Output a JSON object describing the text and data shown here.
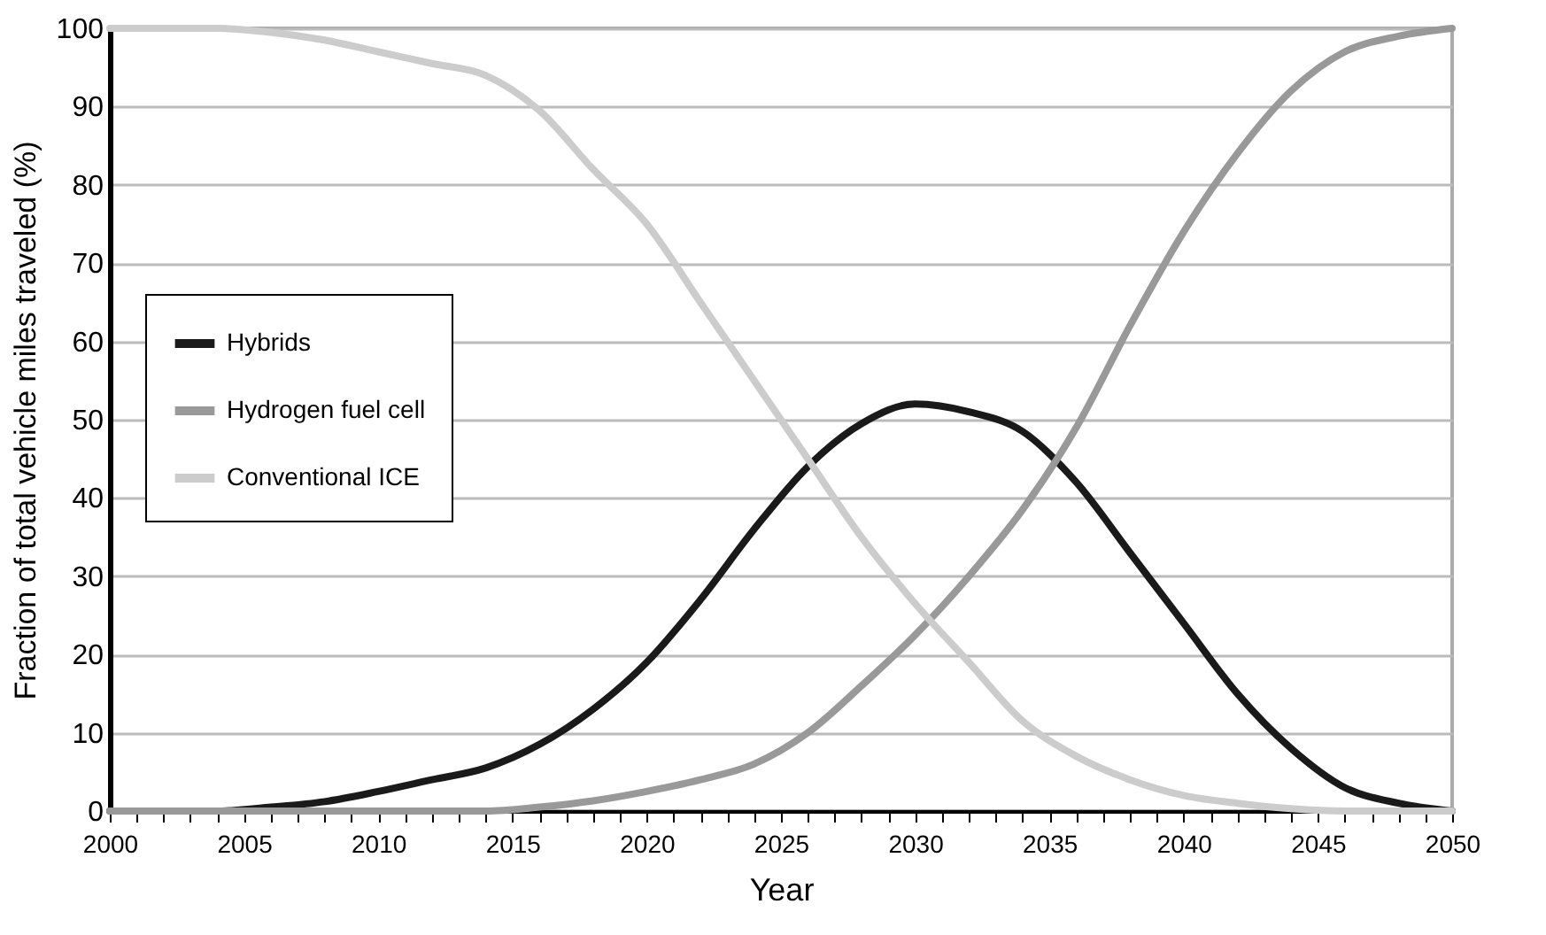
{
  "chart_data": {
    "type": "line",
    "xlabel": "Year",
    "ylabel": "Fraction of total vehicle miles traveled (%)",
    "xlim": [
      2000,
      2050
    ],
    "ylim": [
      0,
      100
    ],
    "xticks": [
      2000,
      {
        "value": 2001,
        "label": null
      },
      {
        "value": 2002,
        "label": null
      },
      {
        "value": 2003,
        "label": null
      },
      {
        "value": 2004,
        "label": null
      },
      2005,
      {
        "value": 2006,
        "label": null
      },
      {
        "value": 2007,
        "label": null
      },
      {
        "value": 2008,
        "label": null
      },
      {
        "value": 2009,
        "label": null
      },
      2010,
      {
        "value": 2011,
        "label": null
      },
      {
        "value": 2012,
        "label": null
      },
      {
        "value": 2013,
        "label": null
      },
      {
        "value": 2014,
        "label": null
      },
      2015,
      {
        "value": 2016,
        "label": null
      },
      {
        "value": 2017,
        "label": null
      },
      {
        "value": 2018,
        "label": null
      },
      {
        "value": 2019,
        "label": null
      },
      2020,
      {
        "value": 2021,
        "label": null
      },
      {
        "value": 2022,
        "label": null
      },
      {
        "value": 2023,
        "label": null
      },
      {
        "value": 2024,
        "label": null
      },
      2025,
      {
        "value": 2026,
        "label": null
      },
      {
        "value": 2027,
        "label": null
      },
      {
        "value": 2028,
        "label": null
      },
      {
        "value": 2029,
        "label": null
      },
      2030,
      {
        "value": 2031,
        "label": null
      },
      {
        "value": 2032,
        "label": null
      },
      {
        "value": 2033,
        "label": null
      },
      {
        "value": 2034,
        "label": null
      },
      2035,
      {
        "value": 2036,
        "label": null
      },
      {
        "value": 2037,
        "label": null
      },
      {
        "value": 2038,
        "label": null
      },
      {
        "value": 2039,
        "label": null
      },
      2040,
      {
        "value": 2041,
        "label": null
      },
      {
        "value": 2042,
        "label": null
      },
      {
        "value": 2043,
        "label": null
      },
      {
        "value": 2044,
        "label": null
      },
      2045,
      {
        "value": 2046,
        "label": null
      },
      {
        "value": 2047,
        "label": null
      },
      {
        "value": 2048,
        "label": null
      },
      {
        "value": 2049,
        "label": null
      },
      2050
    ],
    "yticks": [
      0,
      10,
      20,
      30,
      40,
      50,
      60,
      70,
      80,
      90,
      100
    ],
    "grid": "y",
    "legend": "left",
    "marker": "none",
    "line_style": "solid",
    "x": [
      2000,
      2002,
      2004,
      2006,
      2008,
      2010,
      2012,
      2014,
      2016,
      2018,
      2020,
      2022,
      2024,
      2026,
      2028,
      2030,
      2032,
      2034,
      2036,
      2038,
      2040,
      2042,
      2044,
      2046,
      2048,
      2050
    ],
    "series": [
      {
        "name": "Hybrids",
        "color": "#1a1a1a",
        "values": [
          0,
          0,
          0,
          0.5,
          1.2,
          2.5,
          4,
          5.5,
          8.5,
          13,
          19,
          27,
          36,
          44,
          49.5,
          52,
          51,
          48.5,
          42,
          33,
          24,
          15,
          8,
          3,
          1,
          0
        ]
      },
      {
        "name": "Hydrogen fuel cell",
        "color": "#999999",
        "values": [
          0,
          0,
          0,
          0,
          0,
          0,
          0,
          0,
          0.5,
          1.3,
          2.5,
          4,
          6,
          10,
          16,
          22.5,
          30,
          38.5,
          49,
          62,
          74,
          84,
          92,
          97,
          99,
          100
        ]
      },
      {
        "name": "Conventional ICE",
        "color": "#cccccc",
        "values": [
          100,
          100,
          100,
          99.5,
          98.5,
          97,
          95.5,
          94,
          89.5,
          82,
          75,
          65,
          55,
          45,
          35,
          26.5,
          19,
          11.5,
          7,
          4,
          2,
          1,
          0.3,
          0,
          0,
          0
        ]
      }
    ]
  }
}
